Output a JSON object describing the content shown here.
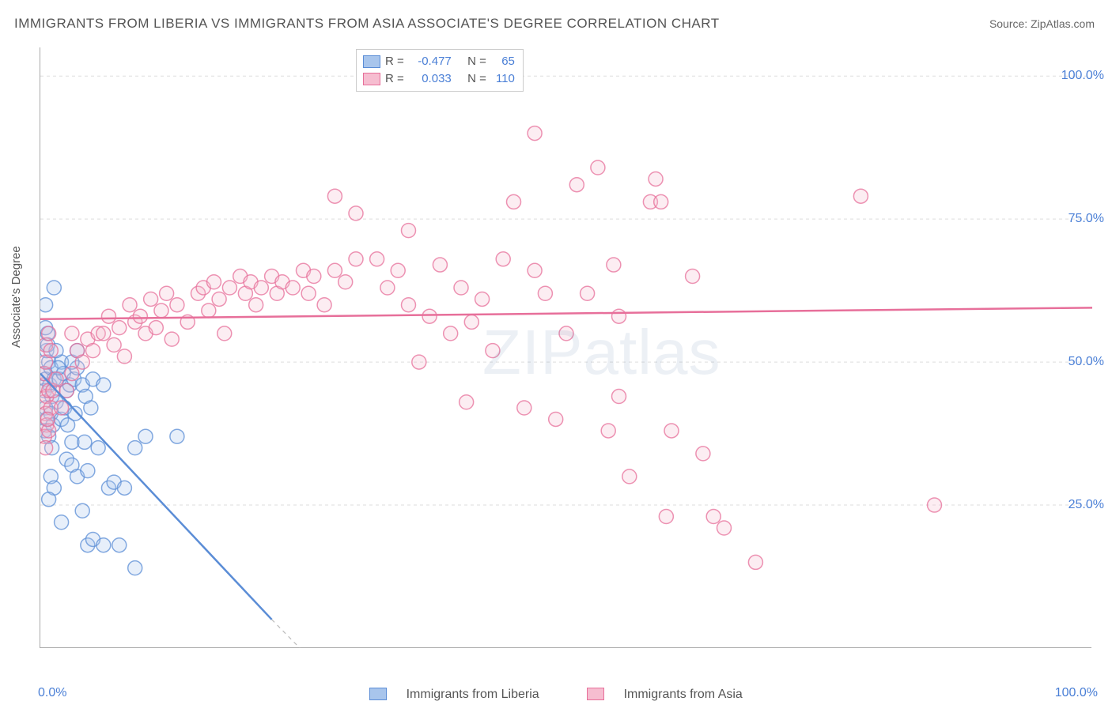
{
  "title": "IMMIGRANTS FROM LIBERIA VS IMMIGRANTS FROM ASIA ASSOCIATE'S DEGREE CORRELATION CHART",
  "source_label": "Source:",
  "source_value": "ZipAtlas.com",
  "ylabel": "Associate's Degree",
  "watermark": "ZIPatlas",
  "chart": {
    "type": "scatter",
    "xlim": [
      0,
      100
    ],
    "ylim": [
      0,
      105
    ],
    "x_ticks": [
      0,
      8.3,
      16.6,
      25,
      33.3,
      41.6,
      50,
      58.3,
      66.6,
      75,
      83.3,
      91.6
    ],
    "y_gridlines": [
      25,
      50,
      75,
      100
    ],
    "y_tick_labels": [
      "25.0%",
      "50.0%",
      "75.0%",
      "100.0%"
    ],
    "x_tick_labels": {
      "left": "0.0%",
      "right": "100.0%"
    },
    "background_color": "#ffffff",
    "grid_color": "#dddddd",
    "axis_color": "#aaaaaa",
    "marker_radius": 9,
    "marker_stroke_width": 1.5,
    "marker_fill_opacity": 0.28,
    "series": [
      {
        "id": "liberia",
        "label": "Immigrants from Liberia",
        "color": "#5b8dd6",
        "fill": "#a8c5ec",
        "r_label": "R  =",
        "r_value": "-0.477",
        "n_label": "N  =",
        "n_value": "65",
        "trend": {
          "x1": 0,
          "y1": 48,
          "x2": 22,
          "y2": 5,
          "solid_until_x": 22,
          "dash_to_x": 30,
          "dash_to_y": -10
        },
        "points": [
          [
            0.3,
            48
          ],
          [
            0.5,
            47
          ],
          [
            0.4,
            45
          ],
          [
            0.8,
            50
          ],
          [
            0.6,
            52
          ],
          [
            0.9,
            46
          ],
          [
            1.1,
            44
          ],
          [
            1.0,
            49
          ],
          [
            0.7,
            55
          ],
          [
            1.3,
            47
          ],
          [
            1.5,
            43
          ],
          [
            0.5,
            42
          ],
          [
            0.6,
            40
          ],
          [
            0.4,
            38
          ],
          [
            1.0,
            41
          ],
          [
            1.2,
            39
          ],
          [
            0.8,
            37
          ],
          [
            1.1,
            35
          ],
          [
            0.5,
            56
          ],
          [
            0.7,
            53
          ],
          [
            1.8,
            47
          ],
          [
            2.0,
            50
          ],
          [
            2.2,
            48
          ],
          [
            2.5,
            45
          ],
          [
            1.5,
            52
          ],
          [
            1.7,
            49
          ],
          [
            2.8,
            46
          ],
          [
            2.0,
            40
          ],
          [
            2.3,
            42
          ],
          [
            2.6,
            39
          ],
          [
            3.0,
            36
          ],
          [
            3.2,
            47
          ],
          [
            3.5,
            49
          ],
          [
            3.3,
            41
          ],
          [
            1.3,
            63
          ],
          [
            0.5,
            60
          ],
          [
            4.0,
            46
          ],
          [
            4.3,
            44
          ],
          [
            4.8,
            42
          ],
          [
            5.0,
            47
          ],
          [
            3.0,
            50
          ],
          [
            3.5,
            52
          ],
          [
            4.2,
            36
          ],
          [
            5.5,
            35
          ],
          [
            6.0,
            46
          ],
          [
            6.5,
            28
          ],
          [
            7.0,
            29
          ],
          [
            8.0,
            28
          ],
          [
            9.0,
            35
          ],
          [
            10.0,
            37
          ],
          [
            13.0,
            37
          ],
          [
            2.5,
            33
          ],
          [
            3.0,
            32
          ],
          [
            3.5,
            30
          ],
          [
            4.5,
            31
          ],
          [
            1.0,
            30
          ],
          [
            1.3,
            28
          ],
          [
            0.8,
            26
          ],
          [
            4.0,
            24
          ],
          [
            2.0,
            22
          ],
          [
            4.5,
            18
          ],
          [
            5.0,
            19
          ],
          [
            6.0,
            18
          ],
          [
            7.5,
            18
          ],
          [
            9.0,
            14
          ]
        ]
      },
      {
        "id": "asia",
        "label": "Immigrants from Asia",
        "color": "#e76f9a",
        "fill": "#f6bdd0",
        "r_label": "R  =",
        "r_value": "0.033",
        "n_label": "N  =",
        "n_value": "110",
        "trend": {
          "x1": 0,
          "y1": 57.5,
          "x2": 100,
          "y2": 59.5
        },
        "points": [
          [
            0.3,
            43
          ],
          [
            0.5,
            41
          ],
          [
            0.6,
            39
          ],
          [
            0.4,
            37
          ],
          [
            0.5,
            35
          ],
          [
            0.8,
            38
          ],
          [
            0.3,
            46
          ],
          [
            0.6,
            44
          ],
          [
            0.4,
            48
          ],
          [
            0.8,
            45
          ],
          [
            0.5,
            50
          ],
          [
            1.0,
            42
          ],
          [
            0.7,
            40
          ],
          [
            1.2,
            45
          ],
          [
            1.5,
            47
          ],
          [
            0.5,
            53
          ],
          [
            0.8,
            55
          ],
          [
            1.0,
            52
          ],
          [
            2.0,
            42
          ],
          [
            2.5,
            45
          ],
          [
            3.0,
            48
          ],
          [
            3.5,
            52
          ],
          [
            3.0,
            55
          ],
          [
            4.0,
            50
          ],
          [
            4.5,
            54
          ],
          [
            5.0,
            52
          ],
          [
            5.5,
            55
          ],
          [
            6.0,
            55
          ],
          [
            6.5,
            58
          ],
          [
            7.0,
            53
          ],
          [
            7.5,
            56
          ],
          [
            8.0,
            51
          ],
          [
            8.5,
            60
          ],
          [
            9.0,
            57
          ],
          [
            9.5,
            58
          ],
          [
            10.0,
            55
          ],
          [
            10.5,
            61
          ],
          [
            11.0,
            56
          ],
          [
            11.5,
            59
          ],
          [
            12.0,
            62
          ],
          [
            12.5,
            54
          ],
          [
            13.0,
            60
          ],
          [
            14.0,
            57
          ],
          [
            15.0,
            62
          ],
          [
            15.5,
            63
          ],
          [
            16.0,
            59
          ],
          [
            16.5,
            64
          ],
          [
            17.0,
            61
          ],
          [
            17.5,
            55
          ],
          [
            18.0,
            63
          ],
          [
            19.0,
            65
          ],
          [
            19.5,
            62
          ],
          [
            20.0,
            64
          ],
          [
            20.5,
            60
          ],
          [
            21.0,
            63
          ],
          [
            22.0,
            65
          ],
          [
            22.5,
            62
          ],
          [
            23.0,
            64
          ],
          [
            24.0,
            63
          ],
          [
            25.0,
            66
          ],
          [
            25.5,
            62
          ],
          [
            26.0,
            65
          ],
          [
            27.0,
            60
          ],
          [
            28.0,
            66
          ],
          [
            29.0,
            64
          ],
          [
            30.0,
            68
          ],
          [
            28.0,
            79
          ],
          [
            30.0,
            76
          ],
          [
            32.0,
            68
          ],
          [
            33.0,
            63
          ],
          [
            34.0,
            66
          ],
          [
            35.0,
            60
          ],
          [
            35.0,
            73
          ],
          [
            36.0,
            50
          ],
          [
            37.0,
            58
          ],
          [
            38.0,
            67
          ],
          [
            39.0,
            55
          ],
          [
            40.0,
            63
          ],
          [
            40.5,
            43
          ],
          [
            41.0,
            57
          ],
          [
            42.0,
            61
          ],
          [
            43.0,
            52
          ],
          [
            44.0,
            68
          ],
          [
            45.0,
            78
          ],
          [
            46.0,
            42
          ],
          [
            47.0,
            66
          ],
          [
            47.0,
            90
          ],
          [
            48.0,
            62
          ],
          [
            49.0,
            40
          ],
          [
            50.0,
            55
          ],
          [
            51.0,
            81
          ],
          [
            52.0,
            62
          ],
          [
            53.0,
            84
          ],
          [
            54.0,
            38
          ],
          [
            54.5,
            67
          ],
          [
            55.0,
            44
          ],
          [
            55.0,
            58
          ],
          [
            56.0,
            30
          ],
          [
            58.0,
            78
          ],
          [
            58.5,
            82
          ],
          [
            59.0,
            78
          ],
          [
            59.5,
            23
          ],
          [
            60.0,
            38
          ],
          [
            62.0,
            65
          ],
          [
            63.0,
            34
          ],
          [
            64.0,
            23
          ],
          [
            65.0,
            21
          ],
          [
            68.0,
            15
          ],
          [
            78.0,
            79
          ],
          [
            85.0,
            25
          ]
        ]
      }
    ]
  }
}
